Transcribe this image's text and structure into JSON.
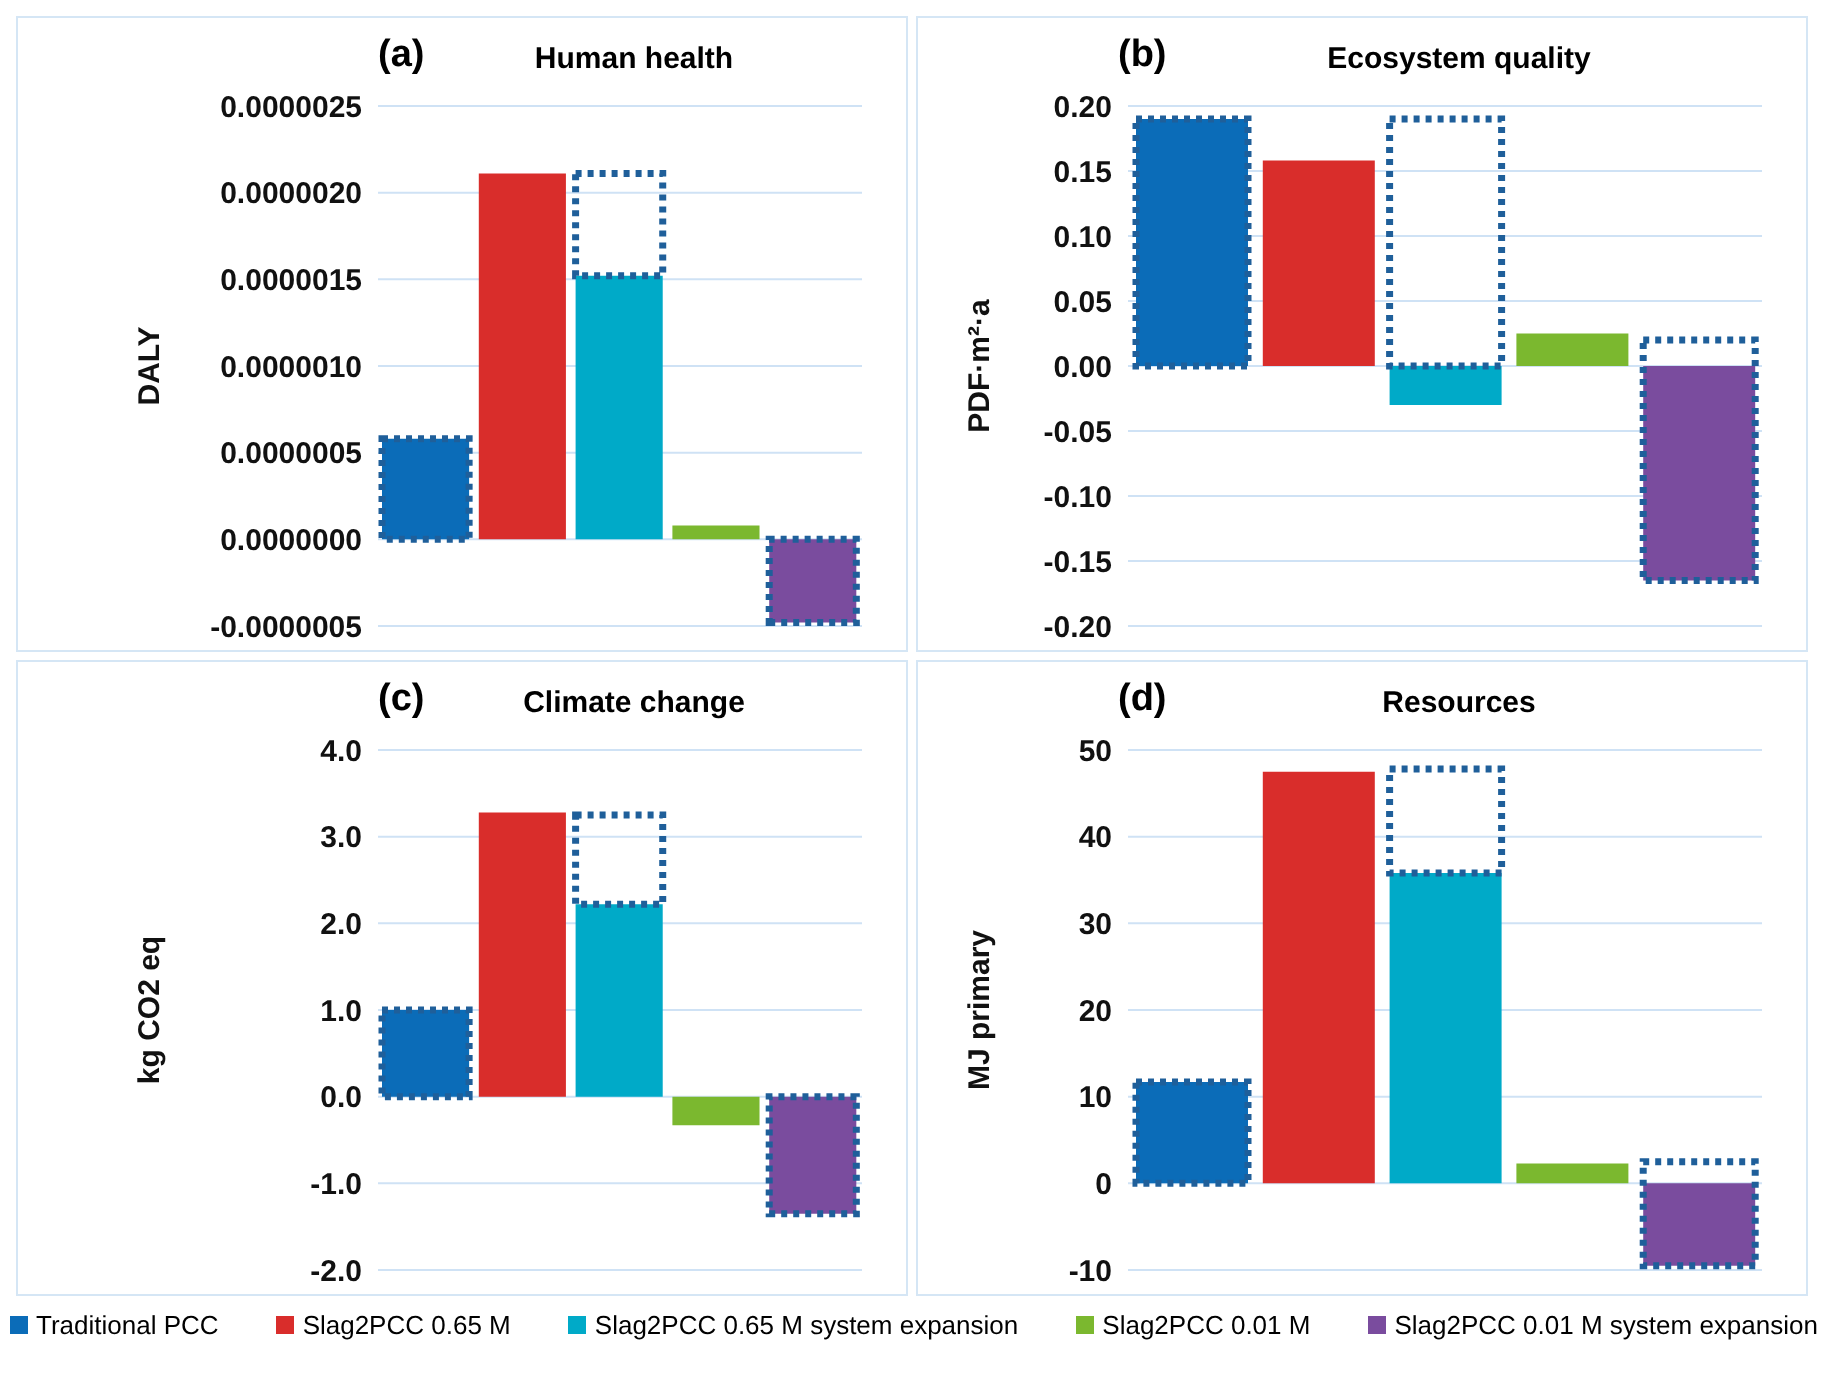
{
  "chart_data": [
    {
      "type": "bar",
      "annotations": [
        "(a)"
      ],
      "title": "Human health",
      "ylabel": "DALY",
      "categories": [
        null,
        null,
        null,
        null,
        null
      ],
      "grid": "y",
      "series": [
        {
          "color": "#0b6cb8",
          "line_style": "dotted",
          "values": [
            5.8e-07,
            null,
            null,
            null,
            null
          ]
        },
        {
          "color": "#d92d2b",
          "values": [
            null,
            2.11e-06,
            null,
            null,
            null
          ]
        },
        {
          "color": "#00aac8",
          "values": [
            null,
            null,
            1.52e-06,
            null,
            null
          ]
        },
        {
          "color": "#7bb82f",
          "values": [
            null,
            null,
            null,
            8e-08,
            null
          ]
        },
        {
          "color": "#7a4c9e",
          "line_style": "dotted",
          "values": [
            null,
            null,
            null,
            null,
            -4.8e-07
          ]
        },
        {
          "color": "#1f5f9a",
          "line_style": "dotted",
          "base": [
            null,
            null,
            1.52e-06,
            null,
            null
          ],
          "values": [
            null,
            null,
            5.9e-07,
            null,
            null
          ]
        }
      ],
      "ylim": [
        -5e-07,
        2.5e-06
      ],
      "yticks": [
        {
          "value": -5e-07,
          "label": "-0.0000005"
        },
        {
          "value": 0,
          "label": "0.0000000"
        },
        {
          "value": 5e-07,
          "label": "0.0000005"
        },
        {
          "value": 1e-06,
          "label": "0.0000010"
        },
        {
          "value": 1.5e-06,
          "label": "0.0000015"
        },
        {
          "value": 2e-06,
          "label": "0.0000020"
        },
        {
          "value": 2.5e-06,
          "label": "0.0000025"
        }
      ]
    },
    {
      "type": "bar",
      "annotations": [
        "(b)"
      ],
      "title": "Ecosystem quality",
      "ylabel": "PDF·m²·a",
      "categories": [
        null,
        null,
        null,
        null,
        null
      ],
      "grid": "y",
      "series": [
        {
          "color": "#0b6cb8",
          "line_style": "dotted",
          "values": [
            0.19,
            null,
            null,
            null,
            null
          ]
        },
        {
          "color": "#d92d2b",
          "values": [
            null,
            0.158,
            null,
            null,
            null
          ]
        },
        {
          "color": "#00aac8",
          "values": [
            null,
            null,
            -0.03,
            null,
            null
          ]
        },
        {
          "color": "#7bb82f",
          "values": [
            null,
            null,
            null,
            0.025,
            null
          ]
        },
        {
          "color": "#7a4c9e",
          "values": [
            null,
            null,
            null,
            null,
            -0.165
          ]
        },
        {
          "color": "#1f5f9a",
          "line_style": "dotted",
          "base": [
            null,
            null,
            0,
            null,
            -0.165
          ],
          "values": [
            null,
            null,
            0.19,
            null,
            0.185
          ]
        }
      ],
      "ylim": [
        -0.2,
        0.2
      ],
      "yticks": [
        {
          "value": -0.2,
          "label": "-0.20"
        },
        {
          "value": -0.15,
          "label": "-0.15"
        },
        {
          "value": -0.1,
          "label": "-0.10"
        },
        {
          "value": -0.05,
          "label": "-0.05"
        },
        {
          "value": 0,
          "label": "0.00"
        },
        {
          "value": 0.05,
          "label": "0.05"
        },
        {
          "value": 0.1,
          "label": "0.10"
        },
        {
          "value": 0.15,
          "label": "0.15"
        },
        {
          "value": 0.2,
          "label": "0.20"
        }
      ]
    },
    {
      "type": "bar",
      "annotations": [
        "(c)"
      ],
      "title": "Climate change",
      "ylabel": "kg CO2 eq",
      "categories": [
        null,
        null,
        null,
        null,
        null
      ],
      "grid": "y",
      "series": [
        {
          "color": "#0b6cb8",
          "line_style": "dotted",
          "values": [
            1.0,
            null,
            null,
            null,
            null
          ]
        },
        {
          "color": "#d92d2b",
          "values": [
            null,
            3.28,
            null,
            null,
            null
          ]
        },
        {
          "color": "#00aac8",
          "values": [
            null,
            null,
            2.22,
            null,
            null
          ]
        },
        {
          "color": "#7bb82f",
          "values": [
            null,
            null,
            null,
            -0.33,
            null
          ]
        },
        {
          "color": "#7a4c9e",
          "line_style": "dotted",
          "values": [
            null,
            null,
            null,
            null,
            -1.35
          ]
        },
        {
          "color": "#1f5f9a",
          "line_style": "dotted",
          "base": [
            null,
            null,
            2.22,
            null,
            null
          ],
          "values": [
            null,
            null,
            1.03,
            null,
            null
          ]
        }
      ],
      "ylim": [
        -2,
        4
      ],
      "yticks": [
        {
          "value": -2,
          "label": "-2.0"
        },
        {
          "value": -1,
          "label": "-1.0"
        },
        {
          "value": 0,
          "label": "0.0"
        },
        {
          "value": 1,
          "label": "1.0"
        },
        {
          "value": 2,
          "label": "2.0"
        },
        {
          "value": 3,
          "label": "3.0"
        },
        {
          "value": 4,
          "label": "4.0"
        }
      ]
    },
    {
      "type": "bar",
      "annotations": [
        "(d)"
      ],
      "title": "Resources",
      "ylabel": "MJ primary",
      "categories": [
        null,
        null,
        null,
        null,
        null
      ],
      "grid": "y",
      "legend": "bottom",
      "series": [
        {
          "name": "Traditional PCC",
          "color": "#0b6cb8",
          "line_style": "dotted",
          "values": [
            11.7,
            null,
            null,
            null,
            null
          ]
        },
        {
          "name": "Slag2PCC 0.65 M",
          "color": "#d92d2b",
          "values": [
            null,
            47.5,
            null,
            null,
            null
          ]
        },
        {
          "name": "Slag2PCC 0.65 M system expansion",
          "color": "#00aac8",
          "values": [
            null,
            null,
            35.8,
            null,
            null
          ]
        },
        {
          "name": "Slag2PCC 0.01 M",
          "color": "#7bb82f",
          "values": [
            null,
            null,
            null,
            2.3,
            null
          ]
        },
        {
          "name": "Slag2PCC 0.01 M system expansion",
          "color": "#7a4c9e",
          "values": [
            null,
            null,
            null,
            null,
            -9.5
          ]
        },
        {
          "color": "#1f5f9a",
          "line_style": "dotted",
          "base": [
            null,
            null,
            35.8,
            null,
            -9.5
          ],
          "values": [
            null,
            null,
            12,
            null,
            12
          ]
        }
      ],
      "ylim": [
        -10,
        50
      ],
      "yticks": [
        -10,
        0,
        10,
        20,
        30,
        40,
        50
      ]
    }
  ]
}
